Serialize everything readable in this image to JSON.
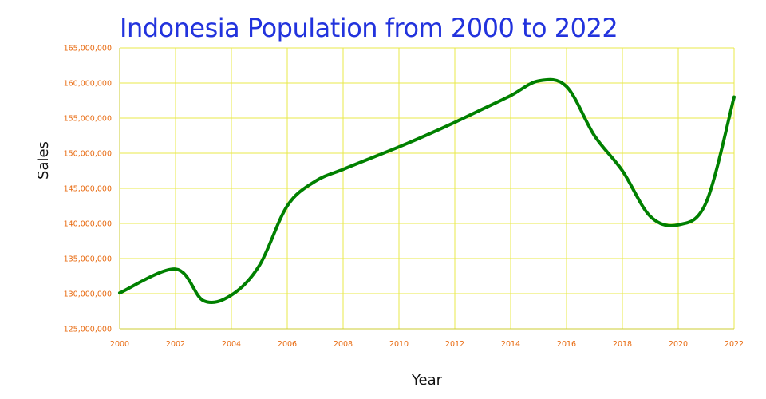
{
  "chart_data": {
    "type": "line",
    "title": "Indonesia Population from 2000 to 2022",
    "xlabel": "Year",
    "ylabel": "Sales",
    "xlim": [
      2000,
      2022
    ],
    "ylim": [
      125000000,
      165000000
    ],
    "x_ticks": [
      "2000",
      "2002",
      "2004",
      "2006",
      "2008",
      "2010",
      "2012",
      "2014",
      "2016",
      "2018",
      "2020",
      "2022"
    ],
    "y_ticks": [
      "125,000,000",
      "130,000,000",
      "135,000,000",
      "140,000,000",
      "145,000,000",
      "150,000,000",
      "155,000,000",
      "160,000,000",
      "165,000,000"
    ],
    "grid": true,
    "smooth": true,
    "series": [
      {
        "x": [
          2000,
          2002,
          2003,
          2004,
          2005,
          2006,
          2007,
          2008,
          2009,
          2010,
          2011,
          2012,
          2013,
          2014,
          2015,
          2016,
          2017,
          2018,
          2019,
          2020,
          2021,
          2022
        ],
        "values": [
          130100000,
          133500000,
          129000000,
          129800000,
          134000000,
          142500000,
          146000000,
          147700000,
          149300000,
          150900000,
          152600000,
          154400000,
          156300000,
          158200000,
          160300000,
          159500000,
          152500000,
          147500000,
          141000000,
          139800000,
          143000000,
          158000000
        ]
      }
    ],
    "colors": {
      "line": "#008000",
      "grid": "#e8e84a",
      "axis": "#cccc33",
      "tick_label": "#e86a10",
      "title": "#2233dd"
    }
  }
}
